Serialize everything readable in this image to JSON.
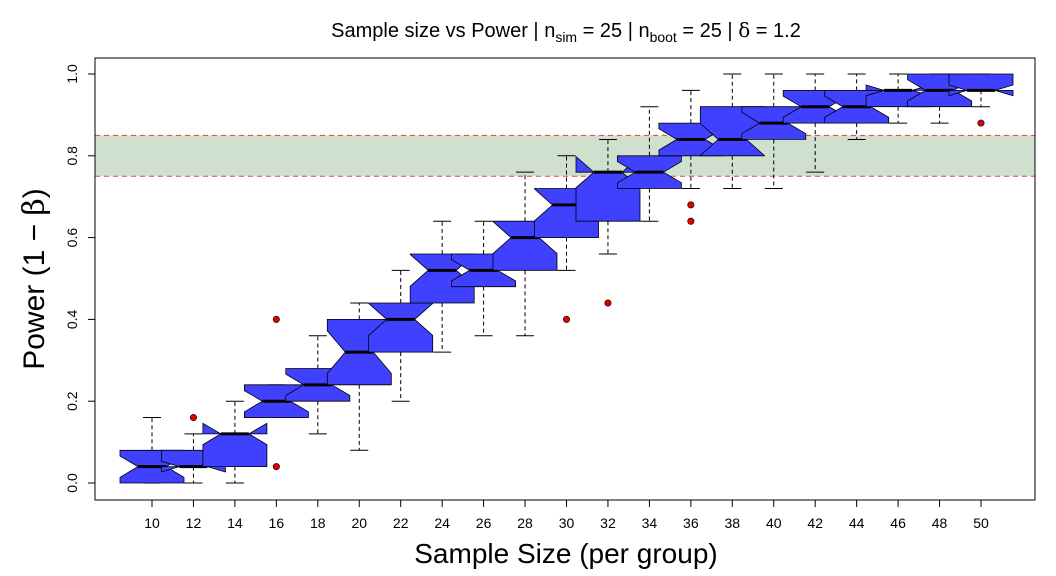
{
  "chart_data": {
    "type": "boxplot",
    "title": {
      "prefix": "Sample size vs Power | n",
      "sim_sub": "sim",
      "sim_mid": " = 25 | n",
      "boot_sub": "boot",
      "boot_mid": " = 25 | ",
      "delta_symbol": "δ",
      "suffix": " = 1.2"
    },
    "xlabel": "Sample Size (per group)",
    "ylabel": {
      "text": "Power (1 − ",
      "symbol": "β",
      "close": ")"
    },
    "ylim": [
      0,
      1
    ],
    "yticks": [
      {
        "value": 0.0,
        "label": "0.0"
      },
      {
        "value": 0.2,
        "label": "0.2"
      },
      {
        "value": 0.4,
        "label": "0.4"
      },
      {
        "value": 0.6,
        "label": "0.6"
      },
      {
        "value": 0.8,
        "label": "0.8"
      },
      {
        "value": 1.0,
        "label": "1.0"
      }
    ],
    "target_band": {
      "lower": 0.75,
      "upper": 0.85,
      "fill": "#cfe0cf",
      "line_color": "#e8443a"
    },
    "box_color": "#4040ff",
    "outlier_color": "#e00000",
    "categories": [
      "10",
      "12",
      "14",
      "16",
      "18",
      "20",
      "22",
      "24",
      "26",
      "28",
      "30",
      "32",
      "34",
      "36",
      "38",
      "40",
      "42",
      "44",
      "46",
      "48",
      "50"
    ],
    "boxes": [
      {
        "label": "10",
        "min": 0.0,
        "q1": 0.0,
        "median": 0.04,
        "q3": 0.08,
        "max": 0.16,
        "notch": [
          0.014,
          0.066
        ],
        "outliers": []
      },
      {
        "label": "12",
        "min": 0.0,
        "q1": 0.04,
        "median": 0.04,
        "q3": 0.08,
        "max": 0.12,
        "notch": [
          0.027,
          0.053
        ],
        "outliers": [
          0.16
        ]
      },
      {
        "label": "14",
        "min": 0.0,
        "q1": 0.04,
        "median": 0.12,
        "q3": 0.12,
        "max": 0.2,
        "notch": [
          0.094,
          0.146
        ],
        "outliers": []
      },
      {
        "label": "16",
        "min": 0.16,
        "q1": 0.16,
        "median": 0.2,
        "q3": 0.24,
        "max": 0.24,
        "notch": [
          0.174,
          0.226
        ],
        "outliers": [
          0.04,
          0.4
        ]
      },
      {
        "label": "18",
        "min": 0.12,
        "q1": 0.2,
        "median": 0.24,
        "q3": 0.28,
        "max": 0.36,
        "notch": [
          0.214,
          0.266
        ],
        "outliers": []
      },
      {
        "label": "20",
        "min": 0.08,
        "q1": 0.24,
        "median": 0.32,
        "q3": 0.4,
        "max": 0.44,
        "notch": [
          0.268,
          0.372
        ],
        "outliers": []
      },
      {
        "label": "22",
        "min": 0.2,
        "q1": 0.32,
        "median": 0.4,
        "q3": 0.44,
        "max": 0.52,
        "notch": [
          0.361,
          0.439
        ],
        "outliers": []
      },
      {
        "label": "24",
        "min": 0.32,
        "q1": 0.44,
        "median": 0.52,
        "q3": 0.56,
        "max": 0.64,
        "notch": [
          0.481,
          0.559
        ],
        "outliers": []
      },
      {
        "label": "26",
        "min": 0.36,
        "q1": 0.48,
        "median": 0.52,
        "q3": 0.56,
        "max": 0.64,
        "notch": [
          0.494,
          0.546
        ],
        "outliers": []
      },
      {
        "label": "28",
        "min": 0.36,
        "q1": 0.52,
        "median": 0.6,
        "q3": 0.64,
        "max": 0.76,
        "notch": [
          0.561,
          0.639
        ],
        "outliers": []
      },
      {
        "label": "30",
        "min": 0.52,
        "q1": 0.6,
        "median": 0.68,
        "q3": 0.72,
        "max": 0.8,
        "notch": [
          0.641,
          0.719
        ],
        "outliers": [
          0.4
        ]
      },
      {
        "label": "32",
        "min": 0.56,
        "q1": 0.64,
        "median": 0.76,
        "q3": 0.76,
        "max": 0.84,
        "notch": [
          0.722,
          0.798
        ],
        "outliers": [
          0.44
        ]
      },
      {
        "label": "34",
        "min": 0.64,
        "q1": 0.72,
        "median": 0.76,
        "q3": 0.8,
        "max": 0.92,
        "notch": [
          0.734,
          0.786
        ],
        "outliers": []
      },
      {
        "label": "36",
        "min": 0.72,
        "q1": 0.8,
        "median": 0.84,
        "q3": 0.88,
        "max": 0.96,
        "notch": [
          0.814,
          0.866
        ],
        "outliers": [
          0.64,
          0.68
        ]
      },
      {
        "label": "38",
        "min": 0.72,
        "q1": 0.8,
        "median": 0.84,
        "q3": 0.92,
        "max": 1.0,
        "notch": [
          0.801,
          0.879
        ],
        "outliers": []
      },
      {
        "label": "40",
        "min": 0.72,
        "q1": 0.84,
        "median": 0.88,
        "q3": 0.92,
        "max": 1.0,
        "notch": [
          0.854,
          0.906
        ],
        "outliers": []
      },
      {
        "label": "42",
        "min": 0.76,
        "q1": 0.88,
        "median": 0.92,
        "q3": 0.96,
        "max": 1.0,
        "notch": [
          0.894,
          0.946
        ],
        "outliers": []
      },
      {
        "label": "44",
        "min": 0.84,
        "q1": 0.88,
        "median": 0.92,
        "q3": 0.96,
        "max": 1.0,
        "notch": [
          0.894,
          0.946
        ],
        "outliers": []
      },
      {
        "label": "46",
        "min": 0.88,
        "q1": 0.92,
        "median": 0.96,
        "q3": 0.96,
        "max": 1.0,
        "notch": [
          0.947,
          0.973
        ],
        "outliers": []
      },
      {
        "label": "48",
        "min": 0.88,
        "q1": 0.92,
        "median": 0.96,
        "q3": 1.0,
        "max": 1.0,
        "notch": [
          0.934,
          0.986
        ],
        "outliers": []
      },
      {
        "label": "50",
        "min": 0.92,
        "q1": 0.96,
        "median": 0.96,
        "q3": 1.0,
        "max": 1.0,
        "notch": [
          0.947,
          0.973
        ],
        "outliers": [
          0.88
        ]
      }
    ]
  }
}
